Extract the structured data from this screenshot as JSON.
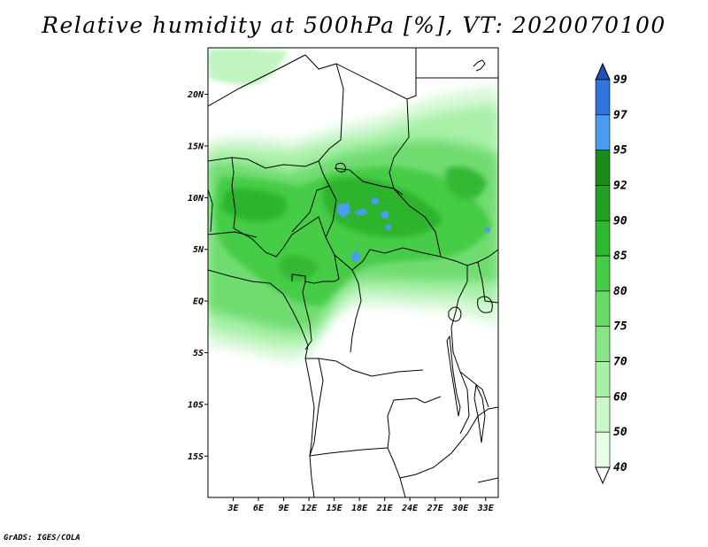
{
  "title": "Relative humidity at 500hPa [%], VT: 2020070100",
  "credit": "GrADS: IGES/COLA",
  "map": {
    "lon_range": [
      0,
      34.5
    ],
    "lat_range": [
      -19,
      24.5
    ],
    "lat_ticks": [
      "20N",
      "15N",
      "10N",
      "5N",
      "EQ",
      "5S",
      "10S",
      "15S"
    ],
    "lon_ticks": [
      "3E",
      "6E",
      "9E",
      "12E",
      "15E",
      "18E",
      "21E",
      "24E",
      "27E",
      "30E",
      "33E"
    ]
  },
  "colorbar": {
    "levels": [
      "40",
      "50",
      "60",
      "70",
      "75",
      "80",
      "85",
      "90",
      "92",
      "95",
      "97",
      "99"
    ],
    "colors": [
      "#ffffff",
      "#e6fde6",
      "#c8f7c8",
      "#a6f0a6",
      "#86e686",
      "#66db66",
      "#46cd46",
      "#2db82d",
      "#20a220",
      "#178c17",
      "#4a9cf0",
      "#2f75dc",
      "#1e4fb4"
    ]
  },
  "chart_data": {
    "type": "heatmap",
    "title": "Relative humidity at 500hPa [%], VT: 2020070100",
    "variable": "Relative humidity at 500hPa",
    "units": "%",
    "valid_time": "2020070100",
    "contour_levels": [
      40,
      50,
      60,
      70,
      75,
      80,
      85,
      90,
      92,
      95,
      97,
      99
    ],
    "xlabel": "",
    "ylabel": "",
    "lon_ticks": [
      "3E",
      "6E",
      "9E",
      "12E",
      "15E",
      "18E",
      "21E",
      "24E",
      "27E",
      "30E",
      "33E"
    ],
    "lat_ticks": [
      "20N",
      "15N",
      "10N",
      "5N",
      "EQ",
      "5S",
      "10S",
      "15S"
    ]
  }
}
